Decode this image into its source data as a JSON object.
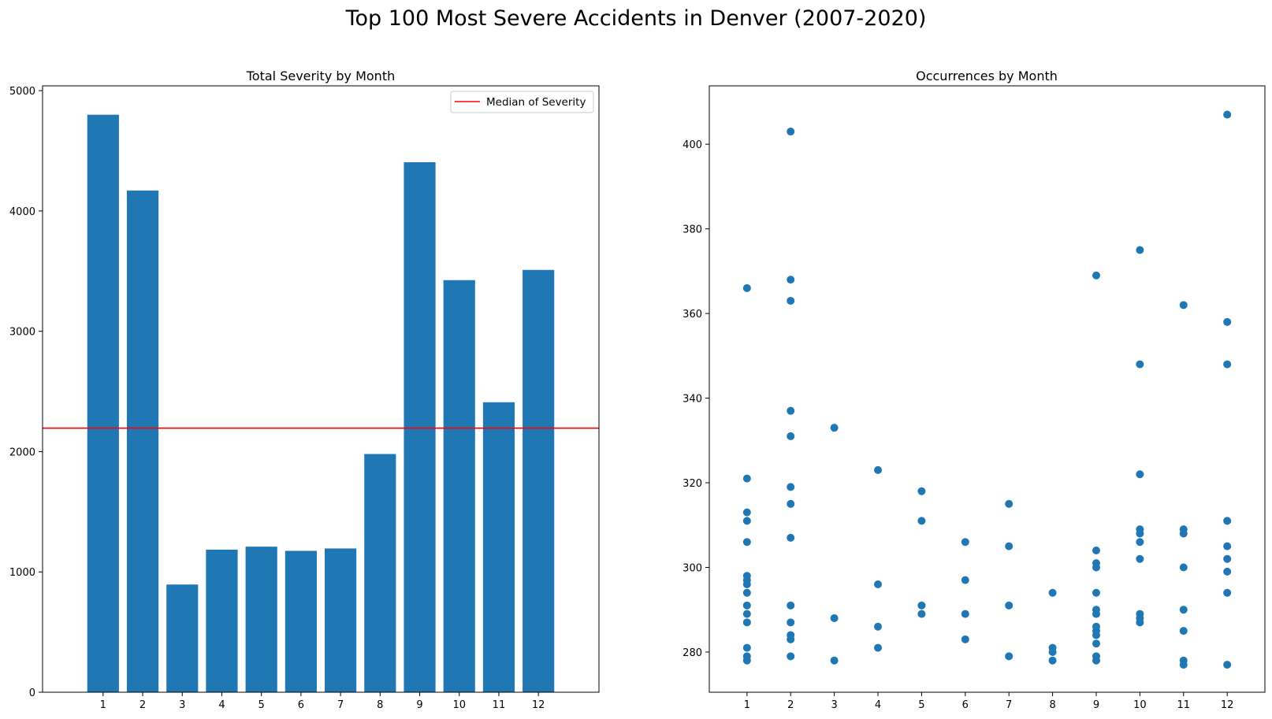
{
  "suptitle": "Top 100 Most Severe Accidents in Denver (2007-2020)",
  "colors": {
    "bar": "#1f77b4",
    "point": "#1f77b4",
    "median": "#ff0000"
  },
  "chart_data": [
    {
      "type": "bar",
      "title": "Total Severity by Month",
      "xlabel": "",
      "ylabel": "",
      "categories": [
        "1",
        "2",
        "3",
        "4",
        "5",
        "6",
        "7",
        "8",
        "9",
        "10",
        "11",
        "12"
      ],
      "values": [
        4800,
        4170,
        895,
        1185,
        1210,
        1175,
        1195,
        1980,
        4405,
        3425,
        2410,
        3510
      ],
      "ylim": [
        0,
        5040
      ],
      "yticks": [
        0,
        1000,
        2000,
        3000,
        4000,
        5000
      ],
      "median_line": {
        "value": 2195,
        "label": "Median of Severity"
      },
      "legend": "top-right",
      "grid": false
    },
    {
      "type": "scatter",
      "title": "Occurrences by Month",
      "xlabel": "",
      "ylabel": "",
      "xticks": [
        1,
        2,
        3,
        4,
        5,
        6,
        7,
        8,
        9,
        10,
        11,
        12
      ],
      "ylim": [
        270.5,
        413.8
      ],
      "yticks": [
        280,
        300,
        320,
        340,
        360,
        380,
        400
      ],
      "points": [
        [
          1,
          366
        ],
        [
          1,
          321
        ],
        [
          1,
          313
        ],
        [
          1,
          311
        ],
        [
          1,
          306
        ],
        [
          1,
          298
        ],
        [
          1,
          297
        ],
        [
          1,
          296
        ],
        [
          1,
          294
        ],
        [
          1,
          291
        ],
        [
          1,
          289
        ],
        [
          1,
          287
        ],
        [
          1,
          281
        ],
        [
          1,
          279
        ],
        [
          1,
          278
        ],
        [
          2,
          403
        ],
        [
          2,
          368
        ],
        [
          2,
          363
        ],
        [
          2,
          337
        ],
        [
          2,
          331
        ],
        [
          2,
          319
        ],
        [
          2,
          315
        ],
        [
          2,
          307
        ],
        [
          2,
          291
        ],
        [
          2,
          287
        ],
        [
          2,
          284
        ],
        [
          2,
          283
        ],
        [
          2,
          279
        ],
        [
          3,
          333
        ],
        [
          3,
          288
        ],
        [
          3,
          278
        ],
        [
          4,
          323
        ],
        [
          4,
          296
        ],
        [
          4,
          286
        ],
        [
          4,
          281
        ],
        [
          5,
          318
        ],
        [
          5,
          311
        ],
        [
          5,
          291
        ],
        [
          5,
          289
        ],
        [
          6,
          306
        ],
        [
          6,
          297
        ],
        [
          6,
          289
        ],
        [
          6,
          283
        ],
        [
          7,
          315
        ],
        [
          7,
          305
        ],
        [
          7,
          291
        ],
        [
          7,
          279
        ],
        [
          8,
          294
        ],
        [
          8,
          281
        ],
        [
          8,
          280
        ],
        [
          8,
          278
        ],
        [
          9,
          369
        ],
        [
          9,
          304
        ],
        [
          9,
          301
        ],
        [
          9,
          300
        ],
        [
          9,
          294
        ],
        [
          9,
          290
        ],
        [
          9,
          289
        ],
        [
          9,
          286
        ],
        [
          9,
          285
        ],
        [
          9,
          284
        ],
        [
          9,
          282
        ],
        [
          9,
          279
        ],
        [
          9,
          278
        ],
        [
          10,
          375
        ],
        [
          10,
          348
        ],
        [
          10,
          322
        ],
        [
          10,
          309
        ],
        [
          10,
          308
        ],
        [
          10,
          306
        ],
        [
          10,
          302
        ],
        [
          10,
          289
        ],
        [
          10,
          288
        ],
        [
          10,
          287
        ],
        [
          11,
          362
        ],
        [
          11,
          309
        ],
        [
          11,
          308
        ],
        [
          11,
          300
        ],
        [
          11,
          290
        ],
        [
          11,
          285
        ],
        [
          11,
          278
        ],
        [
          11,
          277
        ],
        [
          12,
          407
        ],
        [
          12,
          358
        ],
        [
          12,
          348
        ],
        [
          12,
          311
        ],
        [
          12,
          305
        ],
        [
          12,
          302
        ],
        [
          12,
          299
        ],
        [
          12,
          294
        ],
        [
          12,
          277
        ]
      ],
      "grid": false
    }
  ]
}
